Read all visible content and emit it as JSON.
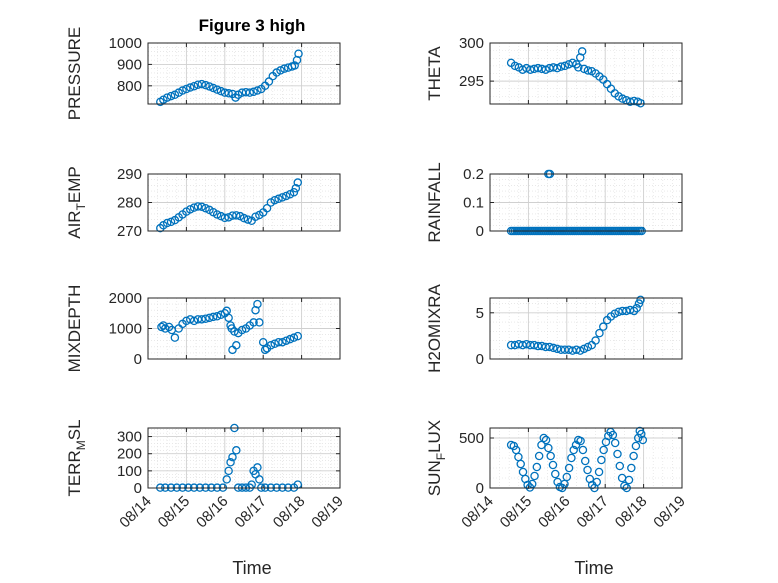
{
  "figure_title": "Figure 3 high",
  "x_axis_label": "Time",
  "x_tick_labels": [
    "08/14",
    "08/15",
    "08/16",
    "08/17",
    "08/18",
    "08/19"
  ],
  "colors": {
    "marker": "#0072BD",
    "grid": "#dcdcdc",
    "axis": "#262626"
  },
  "chart_data": [
    {
      "type": "scatter",
      "ylabel": "PRESSURE",
      "ylim": [
        715,
        1000
      ],
      "yticks": [
        800,
        900,
        1000
      ],
      "ytick_labels": [
        "800",
        "900",
        "1000"
      ],
      "xlim": [
        0,
        5
      ],
      "grid": true,
      "points": [
        [
          0.32,
          725
        ],
        [
          0.4,
          735
        ],
        [
          0.5,
          745
        ],
        [
          0.6,
          752
        ],
        [
          0.7,
          758
        ],
        [
          0.8,
          768
        ],
        [
          0.9,
          778
        ],
        [
          1,
          785
        ],
        [
          1.1,
          792
        ],
        [
          1.2,
          798
        ],
        [
          1.3,
          805
        ],
        [
          1.4,
          808
        ],
        [
          1.5,
          803
        ],
        [
          1.6,
          797
        ],
        [
          1.7,
          790
        ],
        [
          1.8,
          782
        ],
        [
          1.9,
          775
        ],
        [
          2,
          768
        ],
        [
          2.1,
          765
        ],
        [
          2.2,
          762
        ],
        [
          2.28,
          745
        ],
        [
          2.35,
          758
        ],
        [
          2.45,
          768
        ],
        [
          2.55,
          770
        ],
        [
          2.65,
          768
        ],
        [
          2.75,
          772
        ],
        [
          2.85,
          778
        ],
        [
          2.95,
          785
        ],
        [
          3.05,
          800
        ],
        [
          3.15,
          820
        ],
        [
          3.25,
          845
        ],
        [
          3.35,
          862
        ],
        [
          3.45,
          872
        ],
        [
          3.55,
          880
        ],
        [
          3.65,
          885
        ],
        [
          3.75,
          890
        ],
        [
          3.82,
          895
        ],
        [
          3.88,
          920
        ],
        [
          3.92,
          950
        ]
      ]
    },
    {
      "type": "scatter",
      "ylabel": "THETA",
      "ylim": [
        292,
        300
      ],
      "yticks": [
        295,
        300
      ],
      "ytick_labels": [
        "295",
        "300"
      ],
      "xlim": [
        0,
        5
      ],
      "grid": true,
      "points": [
        [
          0.55,
          297.4
        ],
        [
          0.65,
          297
        ],
        [
          0.75,
          296.8
        ],
        [
          0.85,
          296.5
        ],
        [
          0.95,
          296.7
        ],
        [
          1.05,
          296.5
        ],
        [
          1.15,
          296.6
        ],
        [
          1.25,
          296.7
        ],
        [
          1.35,
          296.6
        ],
        [
          1.45,
          296.5
        ],
        [
          1.55,
          296.7
        ],
        [
          1.65,
          296.8
        ],
        [
          1.75,
          296.7
        ],
        [
          1.85,
          296.9
        ],
        [
          1.95,
          297
        ],
        [
          2.05,
          297.2
        ],
        [
          2.15,
          297.4
        ],
        [
          2.25,
          297.2
        ],
        [
          2.3,
          296.8
        ],
        [
          2.35,
          298.1
        ],
        [
          2.4,
          298.9
        ],
        [
          2.45,
          296.6
        ],
        [
          2.55,
          296.4
        ],
        [
          2.65,
          296.3
        ],
        [
          2.75,
          296
        ],
        [
          2.85,
          295.6
        ],
        [
          2.95,
          295.2
        ],
        [
          3.05,
          294.6
        ],
        [
          3.15,
          294
        ],
        [
          3.25,
          293.4
        ],
        [
          3.35,
          293
        ],
        [
          3.45,
          292.7
        ],
        [
          3.55,
          292.5
        ],
        [
          3.65,
          292.3
        ],
        [
          3.75,
          292.4
        ],
        [
          3.85,
          292.3
        ],
        [
          3.92,
          292.1
        ]
      ]
    },
    {
      "type": "scatter",
      "ylabel": "AIR_TEMP",
      "ylim": [
        270,
        290
      ],
      "yticks": [
        270,
        280,
        290
      ],
      "ytick_labels": [
        "270",
        "280",
        "290"
      ],
      "xlim": [
        0,
        5
      ],
      "grid": true,
      "points": [
        [
          0.32,
          271
        ],
        [
          0.4,
          272
        ],
        [
          0.5,
          272.8
        ],
        [
          0.6,
          273.2
        ],
        [
          0.7,
          273.8
        ],
        [
          0.8,
          274.8
        ],
        [
          0.9,
          275.8
        ],
        [
          1,
          276.8
        ],
        [
          1.1,
          277.6
        ],
        [
          1.2,
          278.2
        ],
        [
          1.3,
          278.6
        ],
        [
          1.4,
          278.5
        ],
        [
          1.5,
          278
        ],
        [
          1.6,
          277.4
        ],
        [
          1.7,
          276.6
        ],
        [
          1.8,
          275.8
        ],
        [
          1.9,
          275.2
        ],
        [
          2,
          274.6
        ],
        [
          2.1,
          274.8
        ],
        [
          2.2,
          275.4
        ],
        [
          2.3,
          275.5
        ],
        [
          2.4,
          275.2
        ],
        [
          2.5,
          274.5
        ],
        [
          2.6,
          274
        ],
        [
          2.7,
          273.6
        ],
        [
          2.8,
          275
        ],
        [
          2.9,
          275.6
        ],
        [
          3,
          276.5
        ],
        [
          3.1,
          278
        ],
        [
          3.2,
          280
        ],
        [
          3.3,
          280.8
        ],
        [
          3.4,
          281.3
        ],
        [
          3.5,
          281.8
        ],
        [
          3.6,
          282.3
        ],
        [
          3.7,
          282.9
        ],
        [
          3.8,
          283.6
        ],
        [
          3.85,
          285
        ],
        [
          3.9,
          287
        ]
      ]
    },
    {
      "type": "scatter",
      "ylabel": "RAINFALL",
      "ylim": [
        0,
        0.2
      ],
      "yticks": [
        0,
        0.1,
        0.2
      ],
      "ytick_labels": [
        "0",
        "0.1",
        "0.2"
      ],
      "xlim": [
        0,
        5
      ],
      "grid": true,
      "rain_dense": {
        "from": 0.55,
        "to": 3.95,
        "step": 0.05,
        "value": 0
      },
      "points": [
        [
          1.52,
          0.2
        ],
        [
          1.56,
          0.2
        ]
      ]
    },
    {
      "type": "scatter",
      "ylabel": "MIXDEPTH",
      "ylim": [
        0,
        2000
      ],
      "yticks": [
        0,
        1000,
        2000
      ],
      "ytick_labels": [
        "0",
        "1000",
        "2000"
      ],
      "xlim": [
        0,
        5
      ],
      "grid": true,
      "points": [
        [
          0.35,
          1050
        ],
        [
          0.4,
          1100
        ],
        [
          0.45,
          1000
        ],
        [
          0.55,
          1050
        ],
        [
          0.62,
          950
        ],
        [
          0.7,
          700
        ],
        [
          0.8,
          1000
        ],
        [
          0.9,
          1150
        ],
        [
          1,
          1250
        ],
        [
          1.1,
          1300
        ],
        [
          1.2,
          1250
        ],
        [
          1.3,
          1300
        ],
        [
          1.4,
          1300
        ],
        [
          1.5,
          1320
        ],
        [
          1.6,
          1350
        ],
        [
          1.7,
          1380
        ],
        [
          1.8,
          1400
        ],
        [
          1.9,
          1450
        ],
        [
          2,
          1500
        ],
        [
          2.05,
          1580
        ],
        [
          2.1,
          1350
        ],
        [
          2.15,
          1100
        ],
        [
          2.18,
          1000
        ],
        [
          2.2,
          300
        ],
        [
          2.25,
          900
        ],
        [
          2.3,
          450
        ],
        [
          2.35,
          850
        ],
        [
          2.45,
          950
        ],
        [
          2.55,
          1000
        ],
        [
          2.65,
          1100
        ],
        [
          2.75,
          1200
        ],
        [
          2.8,
          1600
        ],
        [
          2.85,
          1800
        ],
        [
          2.9,
          1200
        ],
        [
          3,
          550
        ],
        [
          3.05,
          300
        ],
        [
          3.1,
          350
        ],
        [
          3.2,
          450
        ],
        [
          3.3,
          500
        ],
        [
          3.4,
          550
        ],
        [
          3.5,
          550
        ],
        [
          3.6,
          600
        ],
        [
          3.7,
          650
        ],
        [
          3.8,
          700
        ],
        [
          3.9,
          750
        ]
      ]
    },
    {
      "type": "scatter",
      "ylabel": "H2OMIXRA",
      "ylim": [
        0,
        6.6
      ],
      "yticks": [
        0,
        5
      ],
      "ytick_labels": [
        "0",
        "5"
      ],
      "xlim": [
        0,
        5
      ],
      "grid": true,
      "points": [
        [
          0.55,
          1.5
        ],
        [
          0.65,
          1.5
        ],
        [
          0.75,
          1.6
        ],
        [
          0.85,
          1.5
        ],
        [
          0.95,
          1.6
        ],
        [
          1.05,
          1.5
        ],
        [
          1.15,
          1.5
        ],
        [
          1.25,
          1.4
        ],
        [
          1.35,
          1.4
        ],
        [
          1.45,
          1.3
        ],
        [
          1.55,
          1.3
        ],
        [
          1.65,
          1.2
        ],
        [
          1.75,
          1.1
        ],
        [
          1.85,
          1.0
        ],
        [
          1.95,
          1.0
        ],
        [
          2.05,
          1.0
        ],
        [
          2.15,
          0.9
        ],
        [
          2.25,
          1.0
        ],
        [
          2.35,
          0.9
        ],
        [
          2.45,
          1.1
        ],
        [
          2.55,
          1.3
        ],
        [
          2.65,
          1.5
        ],
        [
          2.75,
          2.0
        ],
        [
          2.85,
          2.8
        ],
        [
          2.95,
          3.5
        ],
        [
          3.05,
          4.2
        ],
        [
          3.15,
          4.6
        ],
        [
          3.25,
          4.9
        ],
        [
          3.35,
          5.1
        ],
        [
          3.45,
          5.2
        ],
        [
          3.55,
          5.2
        ],
        [
          3.65,
          5.3
        ],
        [
          3.75,
          5.2
        ],
        [
          3.82,
          5.5
        ],
        [
          3.88,
          6.0
        ],
        [
          3.92,
          6.4
        ]
      ]
    },
    {
      "type": "scatter",
      "ylabel": "TERR_MSL",
      "ylim": [
        0,
        350
      ],
      "yticks": [
        0,
        100,
        200,
        300
      ],
      "ytick_labels": [
        "0",
        "100",
        "200",
        "300"
      ],
      "xlim": [
        0,
        5
      ],
      "grid": true,
      "points": [
        [
          0.32,
          2
        ],
        [
          0.45,
          2
        ],
        [
          0.6,
          2
        ],
        [
          0.75,
          2
        ],
        [
          0.9,
          2
        ],
        [
          1.05,
          2
        ],
        [
          1.2,
          2
        ],
        [
          1.35,
          2
        ],
        [
          1.5,
          2
        ],
        [
          1.65,
          2
        ],
        [
          1.8,
          2
        ],
        [
          1.95,
          2
        ],
        [
          2.05,
          50
        ],
        [
          2.1,
          100
        ],
        [
          2.15,
          150
        ],
        [
          2.2,
          180
        ],
        [
          2.25,
          350
        ],
        [
          2.3,
          220
        ],
        [
          2.35,
          2
        ],
        [
          2.45,
          2
        ],
        [
          2.55,
          2
        ],
        [
          2.65,
          2
        ],
        [
          2.7,
          20
        ],
        [
          2.75,
          100
        ],
        [
          2.8,
          80
        ],
        [
          2.85,
          120
        ],
        [
          2.9,
          50
        ],
        [
          2.95,
          2
        ],
        [
          3.05,
          2
        ],
        [
          3.2,
          2
        ],
        [
          3.35,
          2
        ],
        [
          3.5,
          2
        ],
        [
          3.65,
          2
        ],
        [
          3.8,
          2
        ],
        [
          3.9,
          20
        ]
      ]
    },
    {
      "type": "scatter",
      "ylabel": "SUN_FLUX",
      "ylim": [
        0,
        600
      ],
      "yticks": [
        0,
        500
      ],
      "ytick_labels": [
        "0",
        "500"
      ],
      "xlim": [
        0,
        5
      ],
      "grid": true,
      "points": [
        [
          0.55,
          430
        ],
        [
          0.62,
          420
        ],
        [
          0.68,
          380
        ],
        [
          0.74,
          310
        ],
        [
          0.8,
          240
        ],
        [
          0.86,
          160
        ],
        [
          0.92,
          90
        ],
        [
          0.98,
          30
        ],
        [
          1.04,
          5
        ],
        [
          1.1,
          40
        ],
        [
          1.16,
          120
        ],
        [
          1.22,
          210
        ],
        [
          1.28,
          320
        ],
        [
          1.34,
          430
        ],
        [
          1.4,
          500
        ],
        [
          1.46,
          480
        ],
        [
          1.52,
          400
        ],
        [
          1.58,
          320
        ],
        [
          1.64,
          230
        ],
        [
          1.7,
          140
        ],
        [
          1.76,
          60
        ],
        [
          1.82,
          10
        ],
        [
          1.88,
          0
        ],
        [
          1.94,
          40
        ],
        [
          2,
          110
        ],
        [
          2.06,
          200
        ],
        [
          2.12,
          300
        ],
        [
          2.18,
          380
        ],
        [
          2.24,
          430
        ],
        [
          2.3,
          480
        ],
        [
          2.36,
          470
        ],
        [
          2.42,
          380
        ],
        [
          2.48,
          270
        ],
        [
          2.54,
          180
        ],
        [
          2.6,
          90
        ],
        [
          2.66,
          30
        ],
        [
          2.72,
          0
        ],
        [
          2.78,
          60
        ],
        [
          2.84,
          160
        ],
        [
          2.9,
          280
        ],
        [
          2.96,
          380
        ],
        [
          3.02,
          460
        ],
        [
          3.08,
          520
        ],
        [
          3.14,
          560
        ],
        [
          3.2,
          530
        ],
        [
          3.26,
          450
        ],
        [
          3.32,
          340
        ],
        [
          3.38,
          220
        ],
        [
          3.44,
          100
        ],
        [
          3.5,
          20
        ],
        [
          3.56,
          0
        ],
        [
          3.62,
          80
        ],
        [
          3.68,
          200
        ],
        [
          3.74,
          320
        ],
        [
          3.8,
          420
        ],
        [
          3.86,
          500
        ],
        [
          3.9,
          570
        ],
        [
          3.94,
          540
        ],
        [
          3.98,
          480
        ]
      ]
    }
  ]
}
